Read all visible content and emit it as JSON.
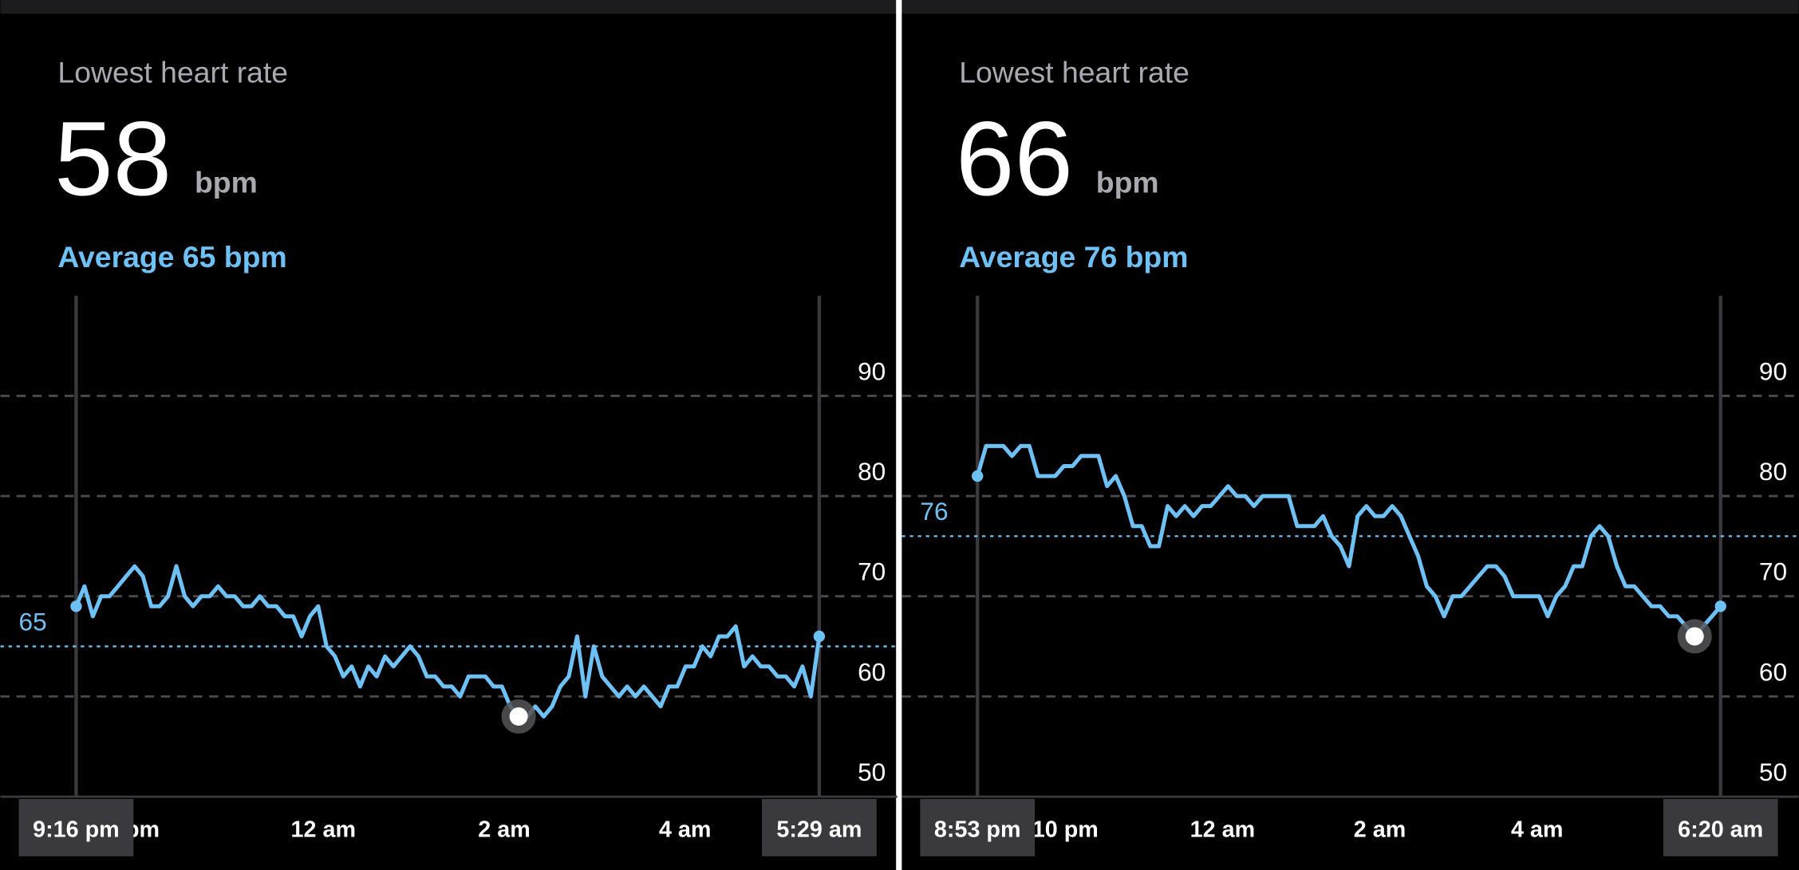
{
  "chart_data": [
    {
      "type": "line",
      "title": "Lowest heart rate",
      "lowest": 58,
      "unit": "bpm",
      "subtitle": "Average 65 bpm",
      "average": 65,
      "ylim": [
        50,
        100
      ],
      "yticks": [
        50,
        60,
        70,
        80,
        90
      ],
      "grid": true,
      "xlim": [
        21.2667,
        29.4833
      ],
      "xticks": [
        {
          "value": 21.2667,
          "label": "9:16 pm"
        },
        {
          "value": 22,
          "label": "pm"
        },
        {
          "value": 24,
          "label": "12 am"
        },
        {
          "value": 26,
          "label": "2 am"
        },
        {
          "value": 28,
          "label": "4 am"
        },
        {
          "value": 29.4833,
          "label": "5:29 am"
        }
      ],
      "series": [
        {
          "color": "#6ec1f5",
          "values": [
            69,
            71,
            68,
            70,
            70,
            71,
            72,
            73,
            72,
            69,
            69,
            70,
            73,
            70,
            69,
            70,
            70,
            71,
            70,
            70,
            69,
            69,
            70,
            69,
            69,
            68,
            68,
            66,
            68,
            69,
            65,
            64,
            62,
            63,
            61,
            63,
            62,
            64,
            63,
            64,
            65,
            64,
            62,
            62,
            61,
            61,
            60,
            62,
            62,
            62,
            61,
            61,
            59,
            58,
            58,
            59,
            58,
            59,
            61,
            62,
            66,
            60,
            65,
            62,
            61,
            60,
            61,
            60,
            61,
            60,
            59,
            61,
            61,
            63,
            63,
            65,
            64,
            66,
            66,
            67,
            63,
            64,
            63,
            63,
            62,
            62,
            61,
            63,
            60,
            66
          ]
        }
      ]
    },
    {
      "type": "line",
      "title": "Lowest heart rate",
      "lowest": 66,
      "unit": "bpm",
      "subtitle": "Average 76 bpm",
      "average": 76,
      "ylim": [
        50,
        100
      ],
      "yticks": [
        50,
        60,
        70,
        80,
        90
      ],
      "grid": true,
      "xlim": [
        20.8833,
        30.3333
      ],
      "xticks": [
        {
          "value": 20.8833,
          "label": "8:53 pm"
        },
        {
          "value": 22,
          "label": "10 pm"
        },
        {
          "value": 24,
          "label": "12 am"
        },
        {
          "value": 26,
          "label": "2 am"
        },
        {
          "value": 28,
          "label": "4 am"
        },
        {
          "value": 30.3333,
          "label": "6:20 am"
        }
      ],
      "series": [
        {
          "color": "#6ec1f5",
          "values": [
            82,
            85,
            85,
            85,
            84,
            85,
            85,
            82,
            82,
            82,
            83,
            83,
            84,
            84,
            84,
            81,
            82,
            80,
            77,
            77,
            75,
            75,
            79,
            78,
            79,
            78,
            79,
            79,
            80,
            81,
            80,
            80,
            79,
            80,
            80,
            80,
            80,
            77,
            77,
            77,
            78,
            76,
            75,
            73,
            78,
            79,
            78,
            78,
            79,
            78,
            76,
            74,
            71,
            70,
            68,
            70,
            70,
            71,
            72,
            73,
            73,
            72,
            70,
            70,
            70,
            70,
            68,
            70,
            71,
            73,
            73,
            76,
            77,
            76,
            73,
            71,
            71,
            70,
            69,
            69,
            68,
            68,
            67,
            66,
            67,
            68,
            69
          ]
        }
      ]
    }
  ]
}
